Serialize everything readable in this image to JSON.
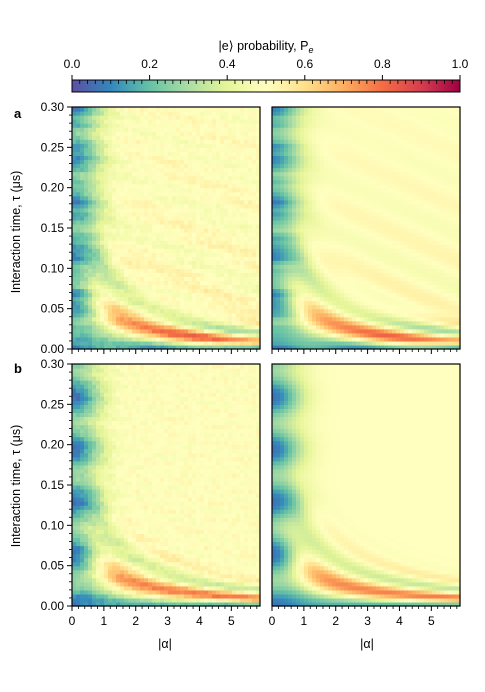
{
  "colorbar": {
    "label": "|e⟩ probability, P",
    "label_sub": "e",
    "ticks": [
      "0.0",
      "0.2",
      "0.4",
      "0.6",
      "0.8",
      "1.0"
    ],
    "range": [
      0,
      1
    ],
    "colormap": [
      "#5e4fa2",
      "#3288bd",
      "#66c2a5",
      "#abdda4",
      "#e6f598",
      "#ffffbf",
      "#fee08b",
      "#fdae61",
      "#f46d43",
      "#d53e4f",
      "#9e0142"
    ]
  },
  "chart_data": [
    {
      "type": "heatmap",
      "panel": "a",
      "variant": "measured",
      "xlabel": "",
      "ylabel": "Interaction time, τ (μs)",
      "xlim": [
        0,
        5.9
      ],
      "ylim": [
        0,
        0.3
      ],
      "x_ticks": [
        "0",
        "1",
        "2",
        "3",
        "4",
        "5"
      ],
      "y_ticks": [
        "0.00",
        "0.05",
        "0.10",
        "0.15",
        "0.20",
        "0.25",
        "0.30"
      ]
    },
    {
      "type": "heatmap",
      "panel": "",
      "variant": "simulated",
      "xlabel": "",
      "ylabel": "",
      "xlim": [
        0,
        5.9
      ],
      "ylim": [
        0,
        0.3
      ],
      "x_ticks": [
        "0",
        "1",
        "2",
        "3",
        "4",
        "5"
      ]
    },
    {
      "type": "heatmap",
      "panel": "b",
      "variant": "measured",
      "xlabel": "|α|",
      "ylabel": "Interaction time, τ (μs)",
      "xlim": [
        0,
        5.9
      ],
      "ylim": [
        0,
        0.3
      ],
      "x_ticks": [
        "0",
        "1",
        "2",
        "3",
        "4",
        "5"
      ],
      "y_ticks": [
        "0.00",
        "0.05",
        "0.10",
        "0.15",
        "0.20",
        "0.25",
        "0.30"
      ]
    },
    {
      "type": "heatmap",
      "panel": "",
      "variant": "simulated",
      "xlabel": "|α|",
      "ylabel": "",
      "xlim": [
        0,
        5.9
      ],
      "ylim": [
        0,
        0.3
      ],
      "x_ticks": [
        "0",
        "1",
        "2",
        "3",
        "4",
        "5"
      ]
    }
  ]
}
